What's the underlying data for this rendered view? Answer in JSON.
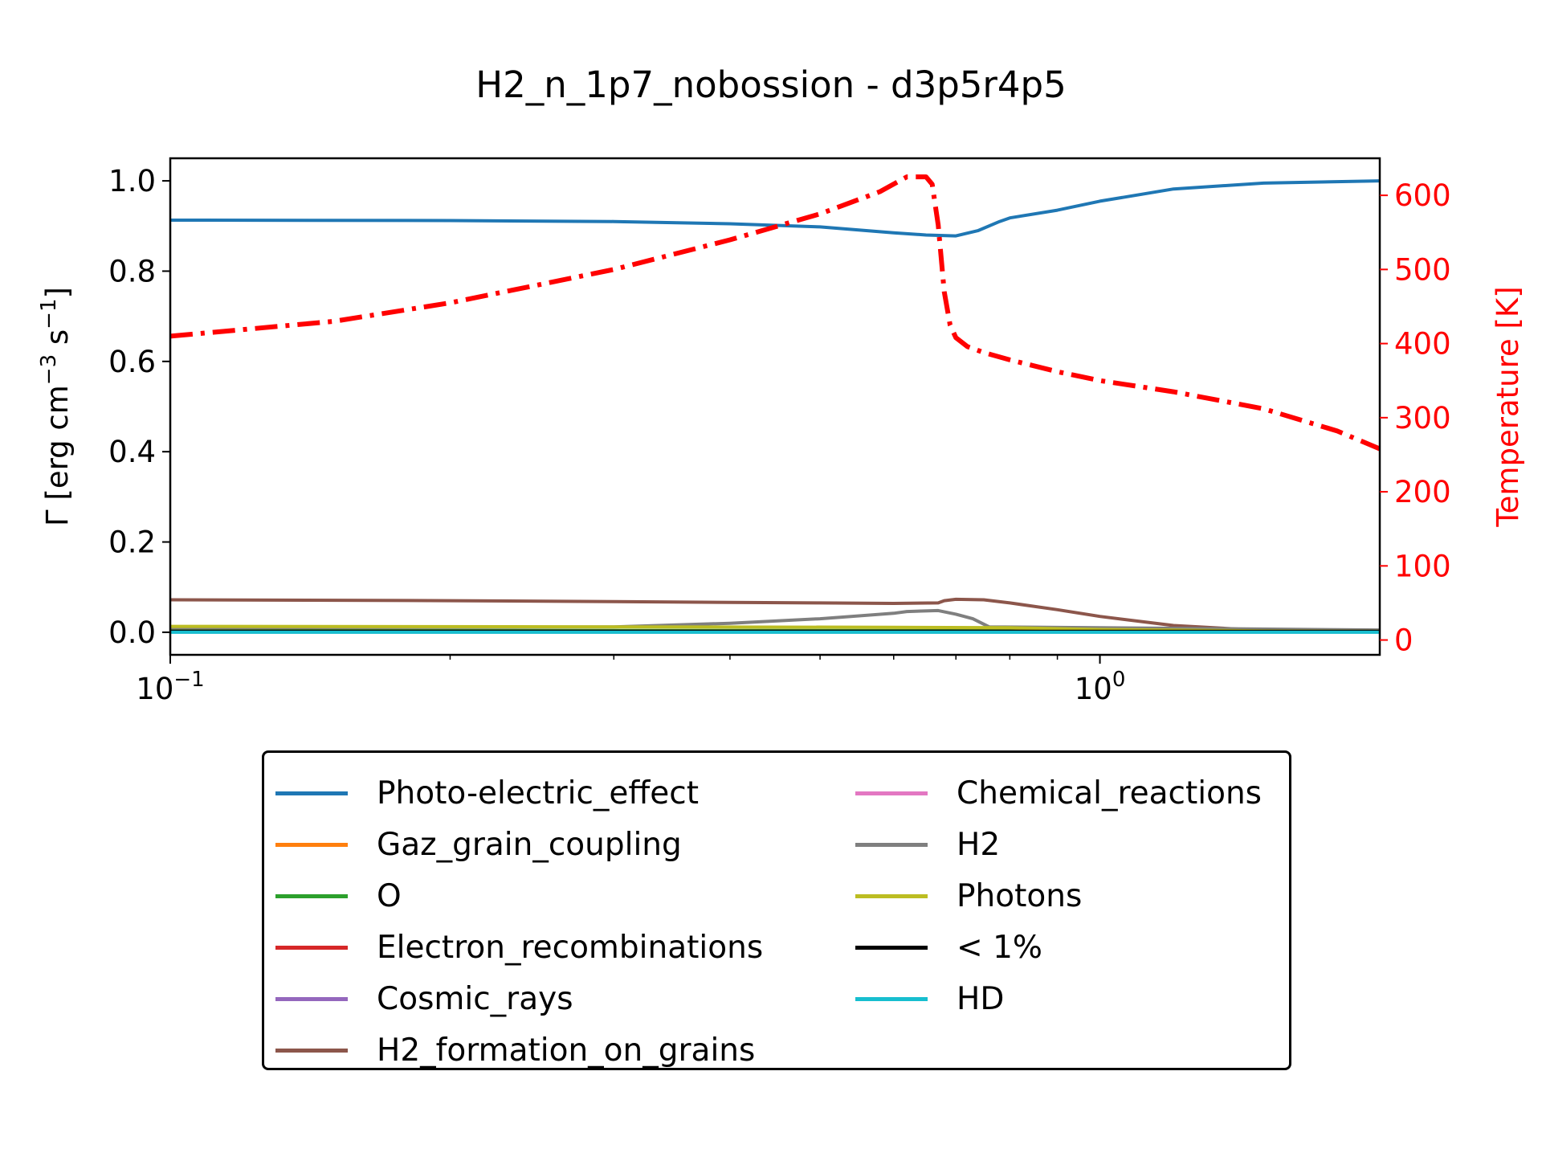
{
  "title": "H2_n_1p7_nobossion - d3p5r4p5",
  "chart_data": {
    "type": "line",
    "title": "H2_n_1p7_nobossion - d3p5r4p5",
    "xscale": "log",
    "xlim": [
      0.1,
      2.0
    ],
    "x_ticks": [
      {
        "value": 0.1,
        "base": "10",
        "exp": "−1"
      },
      {
        "value": 1.0,
        "base": "10",
        "exp": "0"
      }
    ],
    "y_left": {
      "label_prefix": "Γ [erg cm",
      "label_exp1": "−3",
      "label_mid": " s",
      "label_exp2": "−1",
      "label_suffix": "]",
      "ylim": [
        -0.05,
        1.05
      ],
      "ticks": [
        "0.0",
        "0.2",
        "0.4",
        "0.6",
        "0.8",
        "1.0"
      ]
    },
    "y_right": {
      "label": "Temperature [K]",
      "color": "#ff0000",
      "ylim": [
        -20,
        650
      ],
      "ticks": [
        "0",
        "100",
        "200",
        "300",
        "400",
        "500",
        "600"
      ]
    },
    "series": [
      {
        "name": "Photo-electric_effect",
        "color": "#1f77b4",
        "axis": "left",
        "x": [
          0.1,
          0.2,
          0.3,
          0.4,
          0.5,
          0.6,
          0.65,
          0.7,
          0.74,
          0.78,
          0.8,
          0.9,
          1.0,
          1.2,
          1.5,
          2.0
        ],
        "y": [
          0.913,
          0.912,
          0.91,
          0.905,
          0.898,
          0.885,
          0.88,
          0.878,
          0.89,
          0.91,
          0.918,
          0.935,
          0.955,
          0.982,
          0.995,
          1.0
        ]
      },
      {
        "name": "Gaz_grain_coupling",
        "color": "#ff7f0e",
        "axis": "left",
        "x": [
          0.1,
          2.0
        ],
        "y": [
          0.003,
          0.003
        ]
      },
      {
        "name": "O",
        "color": "#2ca02c",
        "axis": "left",
        "x": [
          0.1,
          2.0
        ],
        "y": [
          0.004,
          0.004
        ]
      },
      {
        "name": "Electron_recombinations",
        "color": "#d62728",
        "axis": "left",
        "x": [
          0.1,
          2.0
        ],
        "y": [
          0.002,
          0.002
        ]
      },
      {
        "name": "Cosmic_rays",
        "color": "#9467bd",
        "axis": "left",
        "x": [
          0.1,
          2.0
        ],
        "y": [
          0.001,
          0.001
        ]
      },
      {
        "name": "H2_formation_on_grains",
        "color": "#8c564b",
        "axis": "left",
        "x": [
          0.1,
          0.2,
          0.3,
          0.4,
          0.5,
          0.6,
          0.67,
          0.68,
          0.7,
          0.75,
          0.8,
          0.9,
          1.0,
          1.2,
          1.5,
          2.0
        ],
        "y": [
          0.072,
          0.07,
          0.068,
          0.066,
          0.065,
          0.064,
          0.065,
          0.07,
          0.073,
          0.072,
          0.065,
          0.05,
          0.035,
          0.015,
          0.004,
          0.002
        ]
      },
      {
        "name": "Chemical_reactions",
        "color": "#e377c2",
        "axis": "left",
        "x": [
          0.1,
          2.0
        ],
        "y": [
          0.0005,
          0.0005
        ]
      },
      {
        "name": "H2",
        "color": "#7f7f7f",
        "axis": "left",
        "x": [
          0.1,
          0.3,
          0.4,
          0.5,
          0.6,
          0.62,
          0.67,
          0.7,
          0.73,
          0.76,
          2.0
        ],
        "y": [
          0.01,
          0.012,
          0.02,
          0.03,
          0.042,
          0.046,
          0.048,
          0.04,
          0.03,
          0.012,
          0.005
        ]
      },
      {
        "name": "Photons",
        "color": "#bcbd22",
        "axis": "left",
        "x": [
          0.1,
          0.3,
          0.6,
          0.8,
          1.0,
          1.5,
          2.0
        ],
        "y": [
          0.013,
          0.012,
          0.011,
          0.01,
          0.006,
          0.003,
          0.002
        ]
      },
      {
        "name": "< 1%",
        "color": "#000000",
        "axis": "left",
        "x": [
          0.1,
          2.0
        ],
        "y": [
          0.002,
          0.002
        ]
      },
      {
        "name": "HD",
        "color": "#17becf",
        "axis": "left",
        "x": [
          0.1,
          2.0
        ],
        "y": [
          0.0,
          0.0
        ]
      }
    ],
    "temperature": {
      "color": "#ff0000",
      "axis": "right",
      "style": "dashdot",
      "x": [
        0.1,
        0.15,
        0.2,
        0.3,
        0.4,
        0.5,
        0.58,
        0.62,
        0.65,
        0.66,
        0.67,
        0.68,
        0.69,
        0.7,
        0.72,
        0.75,
        0.8,
        0.9,
        1.0,
        1.2,
        1.5,
        1.8,
        2.0
      ],
      "y": [
        410,
        430,
        455,
        500,
        540,
        575,
        605,
        625,
        625,
        615,
        560,
        470,
        425,
        408,
        396,
        388,
        378,
        362,
        350,
        335,
        312,
        282,
        258
      ]
    },
    "legend": {
      "placement": "below",
      "columns": 2
    }
  }
}
